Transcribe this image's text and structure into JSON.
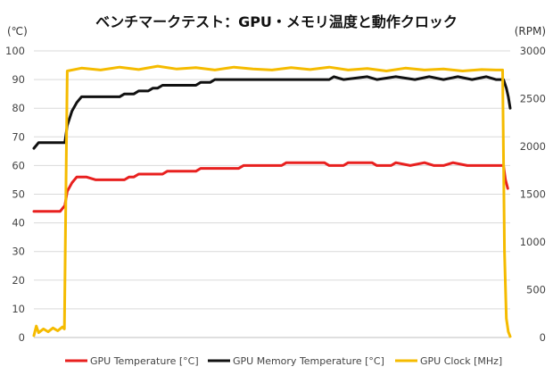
{
  "chart_data": {
    "type": "line",
    "title": "ベンチマークテスト：GPU・メモリ温度と動作クロック",
    "y_unit_left": "(℃)",
    "y_unit_right": "(RPM)",
    "y_left_range": [
      0,
      100
    ],
    "y_left_ticks": [
      "0",
      "10",
      "20",
      "30",
      "40",
      "50",
      "60",
      "70",
      "80",
      "90",
      "100"
    ],
    "y_right_range": [
      0,
      3000
    ],
    "y_right_ticks": [
      "0",
      "500",
      "1000",
      "1500",
      "2000",
      "2500",
      "3000"
    ],
    "grid": true,
    "legend_position": "bottom",
    "x_range": [
      0,
      100
    ],
    "series": [
      {
        "name": "GPU Temperature [°C]",
        "axis": "left",
        "color": "#e8201f",
        "points": [
          [
            0,
            44
          ],
          [
            5.5,
            44
          ],
          [
            6,
            45
          ],
          [
            6.5,
            46
          ],
          [
            7,
            51
          ],
          [
            8,
            54
          ],
          [
            9,
            56
          ],
          [
            11,
            56
          ],
          [
            13,
            55
          ],
          [
            19,
            55
          ],
          [
            20,
            56
          ],
          [
            21,
            56
          ],
          [
            22,
            57
          ],
          [
            27,
            57
          ],
          [
            28,
            58
          ],
          [
            34,
            58
          ],
          [
            35,
            59
          ],
          [
            43,
            59
          ],
          [
            44,
            60
          ],
          [
            52,
            60
          ],
          [
            53,
            61
          ],
          [
            61,
            61
          ],
          [
            62,
            60
          ],
          [
            65,
            60
          ],
          [
            66,
            61
          ],
          [
            71,
            61
          ],
          [
            72,
            60
          ],
          [
            75,
            60
          ],
          [
            76,
            61
          ],
          [
            79,
            60
          ],
          [
            82,
            61
          ],
          [
            84,
            60
          ],
          [
            86,
            60
          ],
          [
            88,
            61
          ],
          [
            91,
            60
          ],
          [
            95,
            60
          ],
          [
            96,
            60
          ],
          [
            97.2,
            60
          ],
          [
            98.6,
            60
          ],
          [
            99,
            55
          ],
          [
            99.5,
            52
          ]
        ]
      },
      {
        "name": "GPU Memory Temperature [°C]",
        "axis": "left",
        "color": "#111111",
        "points": [
          [
            0,
            66
          ],
          [
            0.5,
            67
          ],
          [
            1,
            68
          ],
          [
            5,
            68
          ],
          [
            6.5,
            68
          ],
          [
            7,
            74
          ],
          [
            8,
            79
          ],
          [
            9,
            82
          ],
          [
            10,
            84
          ],
          [
            18,
            84
          ],
          [
            19,
            85
          ],
          [
            21,
            85
          ],
          [
            22,
            86
          ],
          [
            24,
            86
          ],
          [
            25,
            87
          ],
          [
            26,
            87
          ],
          [
            27,
            88
          ],
          [
            34,
            88
          ],
          [
            35,
            89
          ],
          [
            37,
            89
          ],
          [
            38,
            90
          ],
          [
            62,
            90
          ],
          [
            63,
            91
          ],
          [
            65,
            90
          ],
          [
            70,
            91
          ],
          [
            72,
            90
          ],
          [
            76,
            91
          ],
          [
            80,
            90
          ],
          [
            83,
            91
          ],
          [
            86,
            90
          ],
          [
            89,
            91
          ],
          [
            92,
            90
          ],
          [
            95,
            91
          ],
          [
            97,
            90
          ],
          [
            98.6,
            90
          ],
          [
            99.2,
            87
          ],
          [
            99.6,
            84
          ],
          [
            100,
            80
          ]
        ]
      },
      {
        "name": "GPU Clock [MHz]",
        "axis": "right",
        "color": "#f5bb00",
        "points": [
          [
            0,
            20
          ],
          [
            0.5,
            120
          ],
          [
            1,
            50
          ],
          [
            2,
            90
          ],
          [
            3,
            60
          ],
          [
            4,
            100
          ],
          [
            5,
            70
          ],
          [
            6,
            110
          ],
          [
            6.4,
            90
          ],
          [
            7,
            2790
          ],
          [
            10,
            2820
          ],
          [
            14,
            2800
          ],
          [
            18,
            2830
          ],
          [
            22,
            2805
          ],
          [
            26,
            2840
          ],
          [
            30,
            2810
          ],
          [
            34,
            2825
          ],
          [
            38,
            2800
          ],
          [
            42,
            2830
          ],
          [
            46,
            2810
          ],
          [
            50,
            2800
          ],
          [
            54,
            2825
          ],
          [
            58,
            2805
          ],
          [
            62,
            2830
          ],
          [
            66,
            2800
          ],
          [
            70,
            2815
          ],
          [
            74,
            2790
          ],
          [
            78,
            2820
          ],
          [
            82,
            2800
          ],
          [
            86,
            2810
          ],
          [
            90,
            2790
          ],
          [
            94,
            2805
          ],
          [
            97,
            2800
          ],
          [
            98.4,
            2800
          ],
          [
            98.8,
            900
          ],
          [
            99.2,
            200
          ],
          [
            99.6,
            60
          ],
          [
            100,
            10
          ]
        ]
      }
    ]
  }
}
